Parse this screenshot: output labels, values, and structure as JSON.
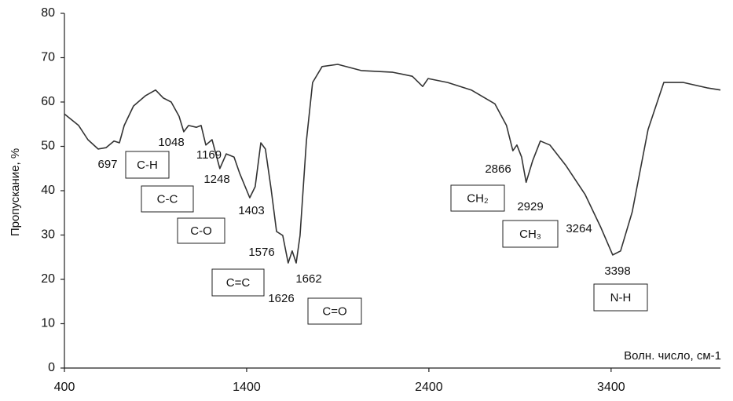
{
  "chart_data": {
    "type": "line",
    "y_label": "Пропускание, %",
    "x_label": "Волн. число, см-1",
    "x": [
      400,
      478,
      529,
      585,
      628,
      672,
      702,
      728,
      779,
      844,
      900,
      943,
      986,
      1029,
      1055,
      1081,
      1124,
      1150,
      1176,
      1210,
      1253,
      1288,
      1331,
      1361,
      1417,
      1447,
      1478,
      1503,
      1534,
      1564,
      1598,
      1628,
      1650,
      1672,
      1693,
      1728,
      1762,
      1814,
      1900,
      2029,
      2202,
      2309,
      2366,
      2396,
      2503,
      2633,
      2762,
      2826,
      2861,
      2883,
      2909,
      2934,
      2969,
      3012,
      3064,
      3150,
      3258,
      3344,
      3409,
      3452,
      3516,
      3603,
      3689,
      3797,
      3926,
      4000
    ],
    "values": [
      57.3,
      54.7,
      51.5,
      49.4,
      49.7,
      51.2,
      50.8,
      54.7,
      59.1,
      61.4,
      62.7,
      60.9,
      60,
      56.8,
      53.3,
      54.7,
      54.3,
      54.7,
      50.3,
      51.5,
      45,
      48.3,
      47.6,
      44,
      38.4,
      40.9,
      50.8,
      49.4,
      40.5,
      30.8,
      29.9,
      23.7,
      26.4,
      23.7,
      29.9,
      51.2,
      64.4,
      68,
      68.5,
      67.1,
      66.7,
      65.8,
      63.5,
      65.3,
      64.4,
      62.7,
      59.6,
      54.7,
      49,
      50.3,
      47.6,
      41.9,
      46.7,
      51.2,
      50.3,
      45.8,
      39.1,
      31.7,
      25.5,
      26.4,
      35.2,
      53.8,
      64.4,
      64.4,
      63.2,
      62.7
    ],
    "color": "#333333",
    "xlim": [
      400,
      4000
    ],
    "xticks": [
      400,
      1400,
      2400,
      3400
    ],
    "ylim": [
      0,
      80
    ],
    "yticks": [
      0,
      10,
      20,
      30,
      40,
      50,
      60,
      70,
      80
    ],
    "grid": false,
    "peak_labels": [
      697,
      1048,
      1169,
      1248,
      1403,
      1576,
      1626,
      1662,
      2866,
      2929,
      3264,
      3398
    ],
    "group_labels": [
      "C-H",
      "C-C",
      "C-O",
      "C=C",
      "C=O",
      "CH₂",
      "CH₃",
      "N-H"
    ]
  }
}
